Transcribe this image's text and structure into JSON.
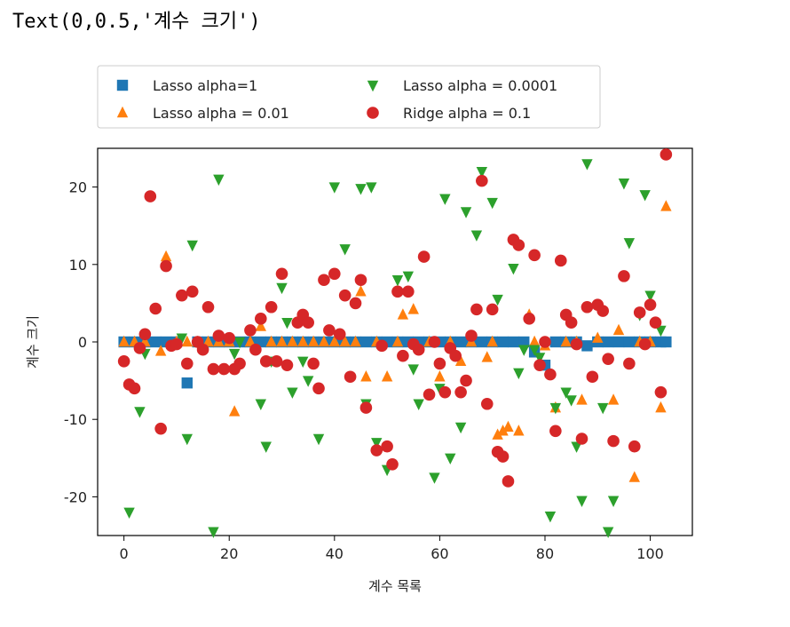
{
  "output_text": "Text(0,0.5,'계수 크기')",
  "chart_data": {
    "type": "scatter",
    "xlabel": "계수 목록",
    "ylabel": "계수 크기",
    "xlim": [
      -5,
      108
    ],
    "ylim": [
      -25,
      25
    ],
    "xticks": [
      0,
      20,
      40,
      60,
      80,
      100
    ],
    "yticks": [
      20,
      10,
      0,
      -10,
      -20
    ],
    "xtick_labels": [
      "0",
      "20",
      "40",
      "60",
      "80",
      "100"
    ],
    "ytick_labels": [
      "20",
      "10",
      "0",
      "-10",
      "-20"
    ],
    "legend_position": "top, outside plot, 2 columns",
    "series": [
      {
        "name": "Lasso alpha=1",
        "marker": "square",
        "color": "#1f77b4",
        "points": [
          [
            0,
            0
          ],
          [
            2,
            0
          ],
          [
            4,
            0
          ],
          [
            6,
            0
          ],
          [
            8,
            0
          ],
          [
            10,
            0
          ],
          [
            12,
            -5.3
          ],
          [
            14,
            0
          ],
          [
            16,
            0
          ],
          [
            18,
            0
          ],
          [
            20,
            0
          ],
          [
            22,
            0
          ],
          [
            24,
            0
          ],
          [
            26,
            0
          ],
          [
            28,
            0
          ],
          [
            30,
            0
          ],
          [
            32,
            0
          ],
          [
            34,
            0
          ],
          [
            36,
            0
          ],
          [
            38,
            0
          ],
          [
            40,
            0
          ],
          [
            42,
            0
          ],
          [
            44,
            0
          ],
          [
            46,
            0
          ],
          [
            48,
            0
          ],
          [
            50,
            0
          ],
          [
            52,
            0
          ],
          [
            54,
            0
          ],
          [
            56,
            0
          ],
          [
            58,
            0
          ],
          [
            60,
            0
          ],
          [
            62,
            0
          ],
          [
            64,
            0
          ],
          [
            66,
            0
          ],
          [
            68,
            0
          ],
          [
            70,
            0
          ],
          [
            72,
            0
          ],
          [
            74,
            0
          ],
          [
            76,
            0
          ],
          [
            78,
            -1.3
          ],
          [
            80,
            -3.0
          ],
          [
            82,
            0
          ],
          [
            84,
            0
          ],
          [
            86,
            0
          ],
          [
            88,
            -0.5
          ],
          [
            90,
            0
          ],
          [
            92,
            0
          ],
          [
            94,
            0
          ],
          [
            96,
            0
          ],
          [
            98,
            0
          ],
          [
            100,
            0
          ],
          [
            102,
            0
          ],
          [
            103,
            0
          ]
        ]
      },
      {
        "name": "Lasso alpha = 0.01",
        "marker": "triangle-up",
        "color": "#ff7f0e",
        "points": [
          [
            0,
            0
          ],
          [
            2,
            0
          ],
          [
            4,
            0
          ],
          [
            7,
            -1.2
          ],
          [
            8,
            11
          ],
          [
            10,
            0
          ],
          [
            12,
            0
          ],
          [
            14,
            0
          ],
          [
            16,
            0
          ],
          [
            18,
            0
          ],
          [
            20,
            0
          ],
          [
            21,
            -9
          ],
          [
            24,
            0
          ],
          [
            26,
            2
          ],
          [
            28,
            0
          ],
          [
            30,
            0
          ],
          [
            32,
            0
          ],
          [
            34,
            0
          ],
          [
            36,
            0
          ],
          [
            38,
            0
          ],
          [
            40,
            0
          ],
          [
            42,
            0
          ],
          [
            44,
            0
          ],
          [
            45,
            6.5
          ],
          [
            46,
            -4.5
          ],
          [
            48,
            0
          ],
          [
            50,
            -4.5
          ],
          [
            52,
            0
          ],
          [
            53,
            3.5
          ],
          [
            55,
            4.2
          ],
          [
            58,
            0
          ],
          [
            60,
            -4.5
          ],
          [
            62,
            0
          ],
          [
            64,
            -2.5
          ],
          [
            66,
            0
          ],
          [
            69,
            -2
          ],
          [
            70,
            0
          ],
          [
            71,
            -12
          ],
          [
            72,
            -11.5
          ],
          [
            73,
            -11
          ],
          [
            75,
            -11.5
          ],
          [
            77,
            3.5
          ],
          [
            78,
            0
          ],
          [
            80,
            -0.5
          ],
          [
            82,
            -8.5
          ],
          [
            84,
            0
          ],
          [
            86,
            0
          ],
          [
            87,
            -7.5
          ],
          [
            90,
            0.5
          ],
          [
            93,
            -7.5
          ],
          [
            94,
            1.5
          ],
          [
            97,
            -17.5
          ],
          [
            98,
            0
          ],
          [
            100,
            0
          ],
          [
            102,
            -8.5
          ],
          [
            103,
            17.5
          ]
        ]
      },
      {
        "name": "Lasso alpha = 0.0001",
        "marker": "triangle-down",
        "color": "#2ca02c",
        "points": [
          [
            1,
            -22
          ],
          [
            3,
            -9
          ],
          [
            4,
            -1.5
          ],
          [
            11,
            0.5
          ],
          [
            12,
            -12.5
          ],
          [
            13,
            12.5
          ],
          [
            17,
            -24.5
          ],
          [
            18,
            21
          ],
          [
            21,
            -1.5
          ],
          [
            22,
            0
          ],
          [
            26,
            -8
          ],
          [
            27,
            -13.5
          ],
          [
            28,
            -2.5
          ],
          [
            30,
            7
          ],
          [
            31,
            2.5
          ],
          [
            32,
            -6.5
          ],
          [
            34,
            -2.5
          ],
          [
            35,
            -5
          ],
          [
            37,
            -12.5
          ],
          [
            40,
            20
          ],
          [
            42,
            12
          ],
          [
            45,
            19.8
          ],
          [
            46,
            -8
          ],
          [
            47,
            20
          ],
          [
            48,
            -13
          ],
          [
            50,
            -16.5
          ],
          [
            52,
            8
          ],
          [
            54,
            8.5
          ],
          [
            55,
            -3.5
          ],
          [
            56,
            -8
          ],
          [
            59,
            -17.5
          ],
          [
            60,
            -6
          ],
          [
            61,
            18.5
          ],
          [
            62,
            -15
          ],
          [
            64,
            -11
          ],
          [
            65,
            16.8
          ],
          [
            67,
            13.8
          ],
          [
            68,
            22
          ],
          [
            70,
            18
          ],
          [
            71,
            5.5
          ],
          [
            74,
            9.5
          ],
          [
            75,
            -4
          ],
          [
            76,
            -1
          ],
          [
            78,
            -1
          ],
          [
            79,
            -2
          ],
          [
            81,
            -22.5
          ],
          [
            82,
            -8.5
          ],
          [
            84,
            -6.5
          ],
          [
            85,
            -7.5
          ],
          [
            86,
            -13.5
          ],
          [
            87,
            -20.5
          ],
          [
            88,
            23
          ],
          [
            91,
            -8.5
          ],
          [
            92,
            -24.5
          ],
          [
            93,
            -20.5
          ],
          [
            95,
            20.5
          ],
          [
            96,
            12.8
          ],
          [
            98,
            3.5
          ],
          [
            99,
            19
          ],
          [
            100,
            6
          ],
          [
            102,
            1.5
          ]
        ]
      },
      {
        "name": "Ridge alpha = 0.1",
        "marker": "circle",
        "color": "#d62728",
        "points": [
          [
            0,
            -2.5
          ],
          [
            1,
            -5.5
          ],
          [
            2,
            -6
          ],
          [
            3,
            -0.8
          ],
          [
            4,
            1
          ],
          [
            5,
            18.8
          ],
          [
            6,
            4.3
          ],
          [
            7,
            -11.2
          ],
          [
            8,
            9.8
          ],
          [
            9,
            -0.5
          ],
          [
            10,
            -0.3
          ],
          [
            11,
            6
          ],
          [
            12,
            -2.8
          ],
          [
            13,
            6.5
          ],
          [
            14,
            0
          ],
          [
            15,
            -1
          ],
          [
            16,
            4.5
          ],
          [
            17,
            -3.5
          ],
          [
            18,
            0.8
          ],
          [
            19,
            -3.5
          ],
          [
            20,
            0.5
          ],
          [
            21,
            -3.5
          ],
          [
            22,
            -2.8
          ],
          [
            24,
            1.5
          ],
          [
            25,
            -1
          ],
          [
            26,
            3
          ],
          [
            27,
            -2.5
          ],
          [
            28,
            4.5
          ],
          [
            29,
            -2.5
          ],
          [
            30,
            8.8
          ],
          [
            31,
            -3
          ],
          [
            33,
            2.5
          ],
          [
            34,
            3.5
          ],
          [
            35,
            2.5
          ],
          [
            36,
            -2.8
          ],
          [
            37,
            -6
          ],
          [
            38,
            8
          ],
          [
            39,
            1.5
          ],
          [
            40,
            8.8
          ],
          [
            41,
            1
          ],
          [
            42,
            6
          ],
          [
            43,
            -4.5
          ],
          [
            44,
            5
          ],
          [
            45,
            8
          ],
          [
            46,
            -8.5
          ],
          [
            48,
            -14
          ],
          [
            49,
            -0.5
          ],
          [
            50,
            -13.5
          ],
          [
            51,
            -15.8
          ],
          [
            52,
            6.5
          ],
          [
            53,
            -1.8
          ],
          [
            54,
            6.5
          ],
          [
            55,
            -0.3
          ],
          [
            56,
            -1
          ],
          [
            57,
            11
          ],
          [
            58,
            -6.8
          ],
          [
            59,
            0
          ],
          [
            60,
            -2.8
          ],
          [
            61,
            -6.5
          ],
          [
            62,
            -0.8
          ],
          [
            63,
            -1.8
          ],
          [
            64,
            -6.5
          ],
          [
            65,
            -5
          ],
          [
            66,
            0.8
          ],
          [
            67,
            4.2
          ],
          [
            68,
            20.8
          ],
          [
            69,
            -8
          ],
          [
            70,
            4.2
          ],
          [
            71,
            -14.2
          ],
          [
            72,
            -14.8
          ],
          [
            73,
            -18
          ],
          [
            74,
            13.2
          ],
          [
            75,
            12.5
          ],
          [
            77,
            3
          ],
          [
            78,
            11.2
          ],
          [
            79,
            -3
          ],
          [
            80,
            0
          ],
          [
            81,
            -4.2
          ],
          [
            82,
            -11.5
          ],
          [
            83,
            10.5
          ],
          [
            84,
            3.5
          ],
          [
            85,
            2.5
          ],
          [
            86,
            -0.3
          ],
          [
            87,
            -12.5
          ],
          [
            88,
            4.5
          ],
          [
            89,
            -4.5
          ],
          [
            90,
            4.8
          ],
          [
            91,
            4
          ],
          [
            92,
            -2.2
          ],
          [
            93,
            -12.8
          ],
          [
            95,
            8.5
          ],
          [
            96,
            -2.8
          ],
          [
            97,
            -13.5
          ],
          [
            98,
            3.8
          ],
          [
            99,
            -0.3
          ],
          [
            100,
            4.8
          ],
          [
            101,
            2.5
          ],
          [
            102,
            -6.5
          ],
          [
            103,
            24.2
          ]
        ]
      }
    ]
  }
}
